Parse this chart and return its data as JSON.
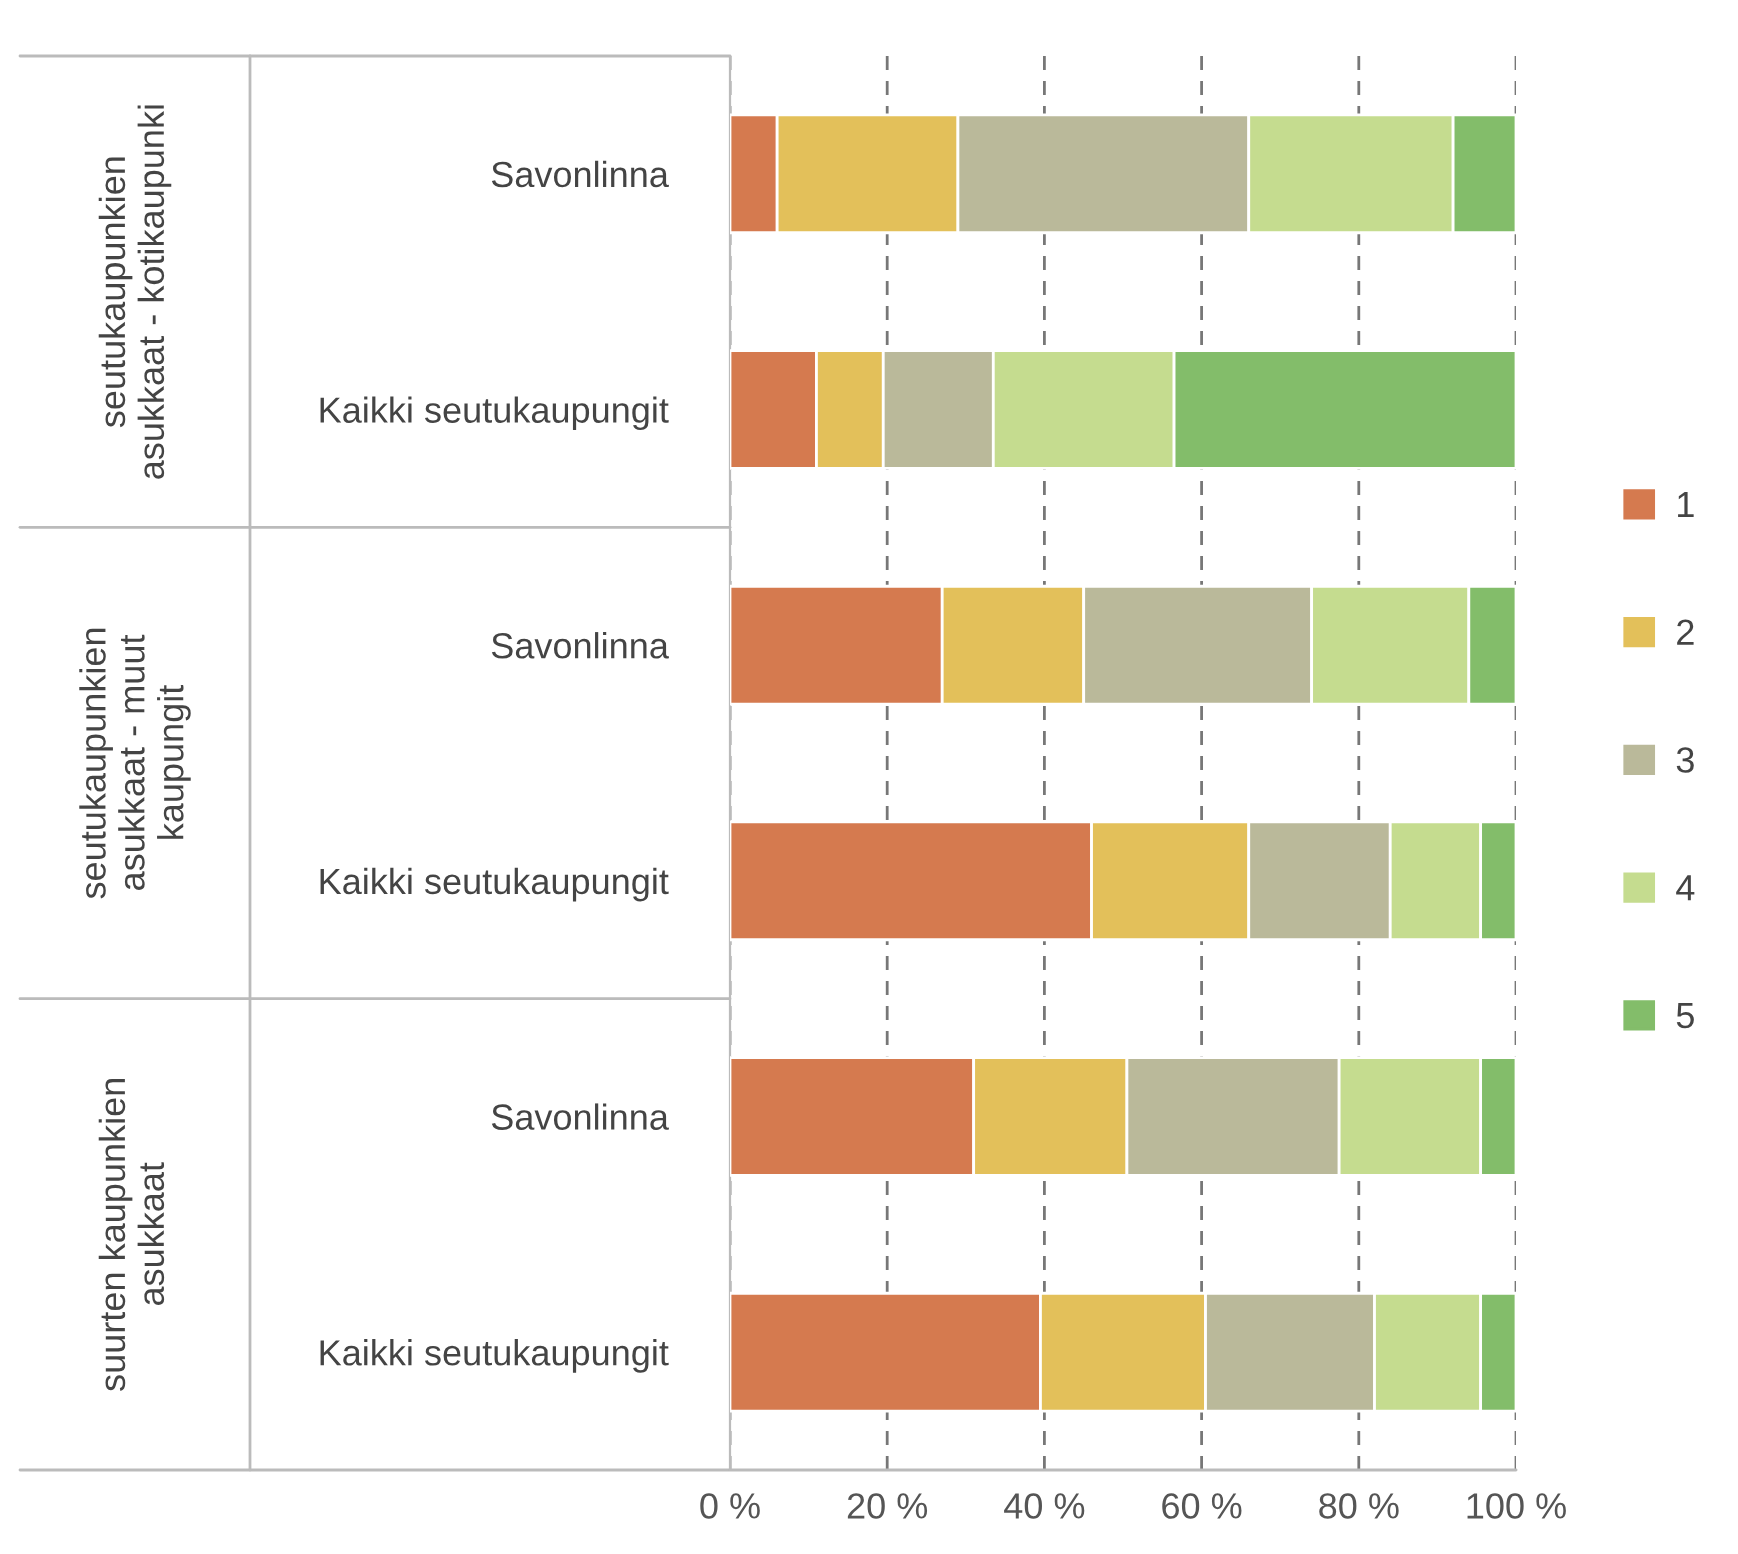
{
  "chart_data": {
    "type": "bar",
    "orientation": "horizontal",
    "stacked": true,
    "categories": [
      "Savonlinna",
      "Kaikki seutukaupungit",
      "Savonlinna",
      "Kaikki seutukaupungit",
      "Savonlinna",
      "Kaikki seutukaupungit"
    ],
    "series": [
      {
        "name": "1",
        "color": "#d57a4f",
        "values": [
          6,
          11,
          27,
          46,
          31,
          39.5
        ]
      },
      {
        "name": "2",
        "color": "#e3c05a",
        "values": [
          23,
          8.5,
          18,
          20,
          19.5,
          21
        ]
      },
      {
        "name": "3",
        "color": "#bab99a",
        "values": [
          37,
          14,
          29,
          18,
          27,
          21.5
        ]
      },
      {
        "name": "4",
        "color": "#c5dc8f",
        "values": [
          26,
          23,
          20,
          11.5,
          18,
          13.5
        ]
      },
      {
        "name": "5",
        "color": "#83bd6a",
        "values": [
          8,
          43.5,
          6,
          4.5,
          4.5,
          4.5
        ]
      }
    ],
    "xlim": [
      0,
      100
    ],
    "xticks": [
      {
        "value": 0,
        "label": "0 %"
      },
      {
        "value": 20,
        "label": "20 %"
      },
      {
        "value": 40,
        "label": "40 %"
      },
      {
        "value": 60,
        "label": "60 %"
      },
      {
        "value": 80,
        "label": "80 %"
      },
      {
        "value": 100,
        "label": "100 %"
      }
    ],
    "grid": "x",
    "line_style": "dashed",
    "legend": "right",
    "annotations": [
      "seutukaupunkien\nasukkaat - kotikaupunki",
      "seutukaupunkien\nasukkaat - muut\nkaupungit",
      "suurten kaupunkien\nasukkaat"
    ]
  }
}
